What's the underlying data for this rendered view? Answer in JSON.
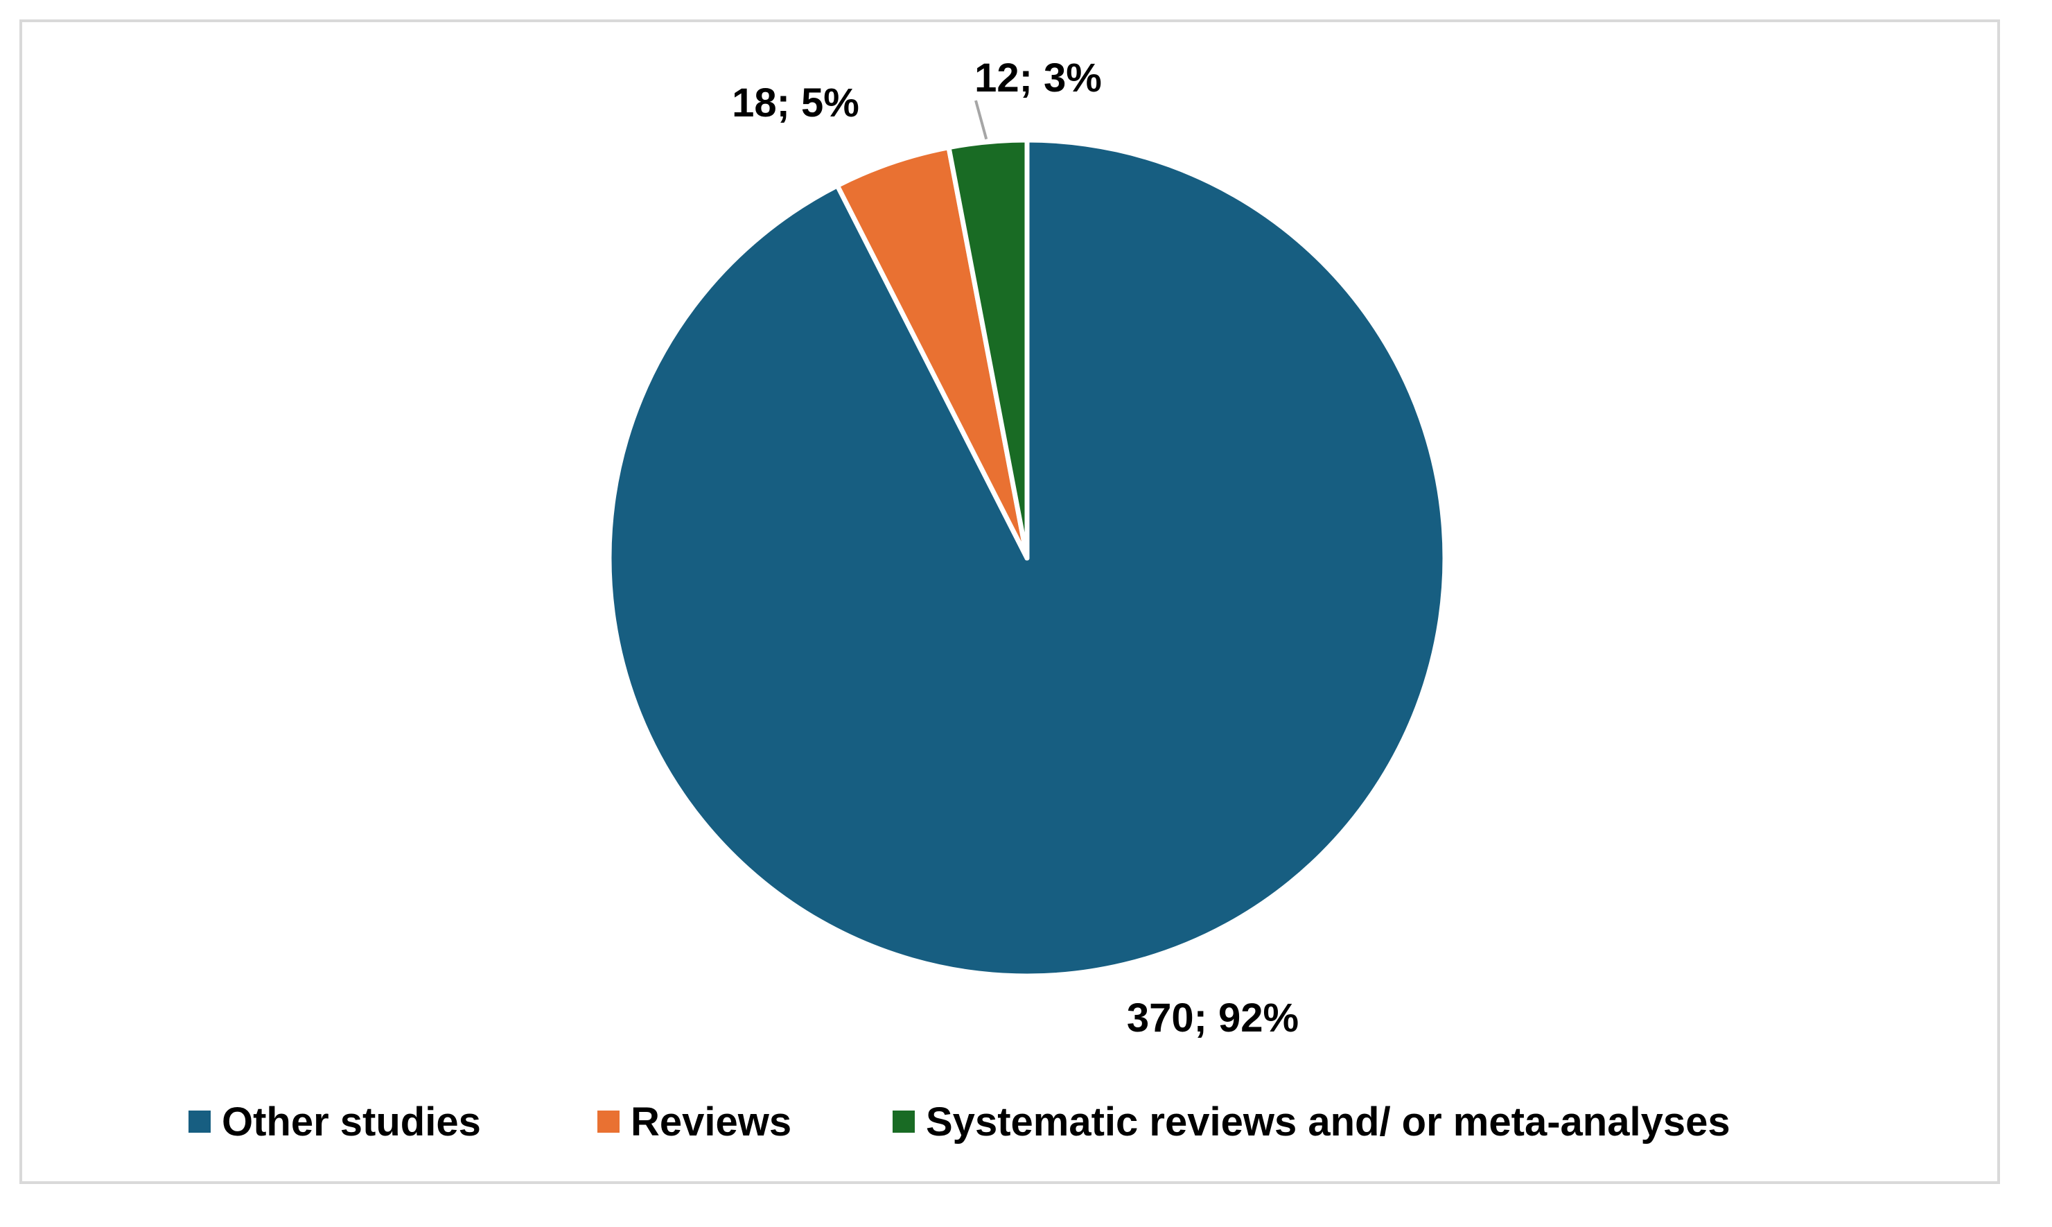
{
  "chart_data": {
    "type": "pie",
    "title": "",
    "slices": [
      {
        "name": "Other studies",
        "value": 370,
        "percent": 92,
        "label": "370; 92%",
        "color": "#175e81"
      },
      {
        "name": "Reviews",
        "value": 18,
        "percent": 5,
        "label": "18; 5%",
        "color": "#e97132"
      },
      {
        "name": "Systematic reviews and/ or meta-analyses",
        "value": 12,
        "percent": 3,
        "label": "12; 3%",
        "color": "#196b24"
      }
    ],
    "legend": {
      "position": "bottom",
      "items": [
        "Other studies",
        "Reviews",
        "Systematic reviews and/ or meta-analyses"
      ]
    },
    "start_angle": "12 o'clock",
    "direction": "clockwise"
  }
}
